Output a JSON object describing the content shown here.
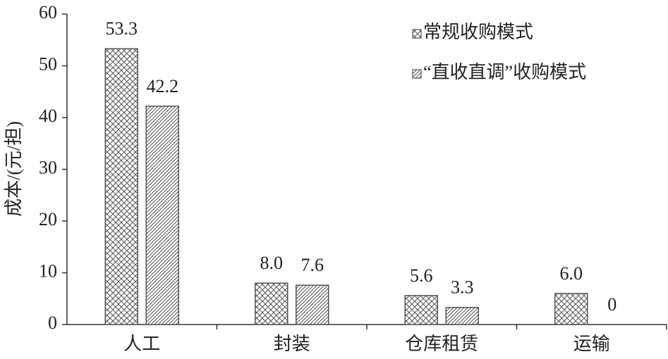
{
  "chart_data": {
    "type": "bar",
    "y_label": "成本/(元/担)",
    "categories": [
      "人工",
      "封装",
      "仓库租赁",
      "运输"
    ],
    "series": [
      {
        "name": "常规收购模式",
        "color": "#555555",
        "pattern": "crosshatch",
        "values": [
          53.3,
          8,
          5.6,
          6
        ],
        "value_labels": [
          "53.3",
          "8.0",
          "5.6",
          "6.0"
        ]
      },
      {
        "name": "“直收直调”收购模式",
        "color": "#555555",
        "pattern": "diagonal",
        "values": [
          42.2,
          7.6,
          3.3,
          0
        ],
        "value_labels": [
          "42.2",
          "7.6",
          "3.3",
          "0"
        ]
      }
    ],
    "ylim": [
      0,
      60
    ],
    "yticks": [
      0,
      10,
      20,
      30,
      40,
      50,
      60
    ],
    "grid": false,
    "legend": "top-right"
  }
}
